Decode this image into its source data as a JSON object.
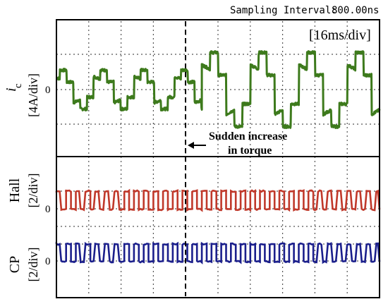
{
  "header": {
    "sampling_label": "Sampling Interval:",
    "sampling_value": "800.00ns"
  },
  "colors": {
    "current": "#3d7a1c",
    "hall": "#c0392b",
    "cp": "#1b1f8c",
    "grid": "#555555",
    "frame": "#000000"
  },
  "chart_data": {
    "type": "line",
    "timebase": "[16ms/div]",
    "annotation": {
      "text_line1": "Sudden increase",
      "text_line2": "in torque",
      "at_division": 4.5
    },
    "divisions_x": 10,
    "panels": [
      {
        "id": "current",
        "label_main": "i",
        "label_sub": "c",
        "label_scale": "[4A/div]",
        "zero_label": "0",
        "color": "#3d7a1c",
        "series": [
          {
            "name": "",
            "segments": [
              {
                "x_range": [
                  0,
                  4.5
                ],
                "period_div": 1.25,
                "amplitude_div": 0.55,
                "shape": "six-step"
              },
              {
                "x_range": [
                  4.5,
                  10
                ],
                "period_div": 1.5,
                "amplitude_div": 1.05,
                "shape": "six-step"
              }
            ]
          }
        ]
      },
      {
        "id": "hall",
        "label_main": "Hall",
        "label_scale": "[2/div]",
        "zero_label": "0",
        "color": "#c0392b",
        "series": [
          {
            "name": "",
            "type": "square",
            "low": 0,
            "high": 1,
            "period_div": 0.3
          }
        ]
      },
      {
        "id": "cp",
        "label_main": "CP",
        "label_scale": "[2/div]",
        "zero_label": "0",
        "color": "#1b1f8c",
        "series": [
          {
            "name": "",
            "type": "square",
            "low": 0,
            "high": 1,
            "period_div": 0.3
          }
        ]
      }
    ]
  }
}
